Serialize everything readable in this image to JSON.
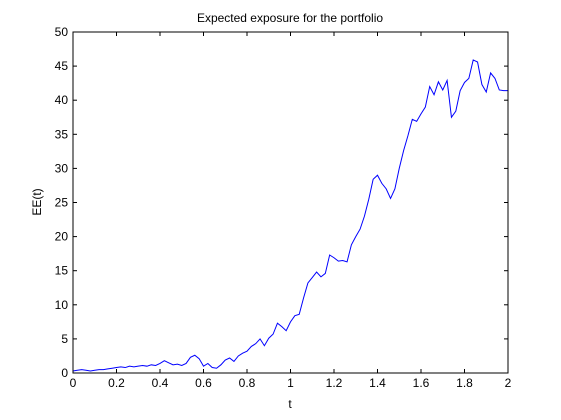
{
  "chart_data": {
    "type": "line",
    "title": "Expected exposure for the portfolio",
    "xlabel": "t",
    "ylabel": "EE(t)",
    "xlim": [
      0,
      2
    ],
    "ylim": [
      0,
      50
    ],
    "x_ticks": [
      0,
      0.2,
      0.4,
      0.6,
      0.8,
      1,
      1.2,
      1.4,
      1.6,
      1.8,
      2
    ],
    "x_tick_labels": [
      "0",
      "0.2",
      "0.4",
      "0.6",
      "0.8",
      "1",
      "1.2",
      "1.4",
      "1.6",
      "1.8",
      "2"
    ],
    "y_ticks": [
      0,
      5,
      10,
      15,
      20,
      25,
      30,
      35,
      40,
      45,
      50
    ],
    "y_tick_labels": [
      "0",
      "5",
      "10",
      "15",
      "20",
      "25",
      "30",
      "35",
      "40",
      "45",
      "50"
    ],
    "grid": false,
    "series": [
      {
        "color": "#0000ff",
        "x": [
          0,
          0.02,
          0.04,
          0.06,
          0.08,
          0.1,
          0.12,
          0.14,
          0.16,
          0.18,
          0.2,
          0.22,
          0.24,
          0.26,
          0.28,
          0.3,
          0.32,
          0.34,
          0.36,
          0.38,
          0.4,
          0.42,
          0.44,
          0.46,
          0.48,
          0.5,
          0.52,
          0.54,
          0.56,
          0.58,
          0.6,
          0.62,
          0.64,
          0.66,
          0.68,
          0.7,
          0.72,
          0.74,
          0.76,
          0.78,
          0.8,
          0.82,
          0.84,
          0.86,
          0.88,
          0.9,
          0.92,
          0.94,
          0.96,
          0.98,
          1.0,
          1.02,
          1.04,
          1.06,
          1.08,
          1.1,
          1.12,
          1.14,
          1.16,
          1.18,
          1.2,
          1.22,
          1.24,
          1.26,
          1.28,
          1.3,
          1.32,
          1.34,
          1.36,
          1.38,
          1.4,
          1.42,
          1.44,
          1.46,
          1.48,
          1.5,
          1.52,
          1.54,
          1.56,
          1.58,
          1.6,
          1.62,
          1.64,
          1.66,
          1.68,
          1.7,
          1.72,
          1.74,
          1.76,
          1.78,
          1.8,
          1.82,
          1.84,
          1.86,
          1.88,
          1.9,
          1.92,
          1.94,
          1.96,
          1.98,
          2.0
        ],
        "values": [
          0.3,
          0.4,
          0.5,
          0.4,
          0.3,
          0.4,
          0.5,
          0.5,
          0.6,
          0.7,
          0.8,
          0.9,
          0.8,
          1.0,
          0.9,
          1.0,
          1.1,
          1.0,
          1.2,
          1.1,
          1.4,
          1.8,
          1.5,
          1.2,
          1.3,
          1.1,
          1.4,
          2.3,
          2.6,
          2.1,
          1.0,
          1.4,
          0.8,
          0.7,
          1.2,
          1.9,
          2.2,
          1.7,
          2.5,
          2.9,
          3.2,
          3.9,
          4.3,
          5.0,
          4.0,
          5.1,
          5.7,
          7.3,
          6.8,
          6.2,
          7.5,
          8.4,
          8.6,
          11.0,
          13.2,
          14.0,
          14.8,
          14.1,
          14.6,
          17.3,
          16.9,
          16.4,
          16.5,
          16.3,
          18.8,
          20.0,
          21.1,
          23.0,
          25.5,
          28.4,
          29.0,
          27.8,
          27.0,
          25.6,
          27.0,
          30.0,
          32.6,
          34.8,
          37.2,
          36.9,
          38.0,
          39.0,
          42.0,
          40.8,
          42.7,
          41.5,
          42.9,
          37.5,
          38.4,
          41.4,
          42.6,
          43.2,
          45.9,
          45.6,
          42.3,
          41.2,
          44.0,
          43.2,
          41.5,
          41.4,
          41.4
        ]
      }
    ]
  }
}
